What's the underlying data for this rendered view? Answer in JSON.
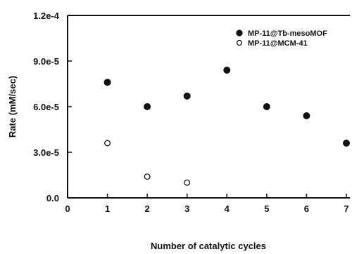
{
  "chart_data": {
    "type": "scatter",
    "xlabel": "Number of catalytic cycles",
    "ylabel": "Rate (mM/sec)",
    "xlim": [
      0,
      7
    ],
    "ylim": [
      0,
      0.00012
    ],
    "x_ticks": [
      0,
      1,
      2,
      3,
      4,
      5,
      6,
      7
    ],
    "x_tick_labels": [
      "0",
      "1",
      "2",
      "3",
      "4",
      "5",
      "6",
      "7"
    ],
    "y_ticks": [
      0,
      3e-05,
      6e-05,
      9e-05,
      0.00012
    ],
    "y_tick_labels": [
      "0.0",
      "3.0e-5",
      "6.0e-5",
      "9.0e-5",
      "1.2e-4"
    ],
    "grid": false,
    "legend_position": "top-right",
    "series": [
      {
        "name": "MP-11@Tb-mesoMOF",
        "marker": "filled-circle",
        "color": "#111111",
        "points": [
          {
            "x": 1,
            "y": 7.6e-05
          },
          {
            "x": 2,
            "y": 6e-05
          },
          {
            "x": 3,
            "y": 6.7e-05
          },
          {
            "x": 4,
            "y": 8.4e-05
          },
          {
            "x": 5,
            "y": 6e-05
          },
          {
            "x": 6,
            "y": 5.4e-05
          },
          {
            "x": 7,
            "y": 3.6e-05
          }
        ]
      },
      {
        "name": "MP-11@MCM-41",
        "marker": "open-circle",
        "color": "#111111",
        "points": [
          {
            "x": 1,
            "y": 3.6e-05
          },
          {
            "x": 2,
            "y": 1.4e-05
          },
          {
            "x": 3,
            "y": 1e-05
          }
        ]
      }
    ]
  }
}
